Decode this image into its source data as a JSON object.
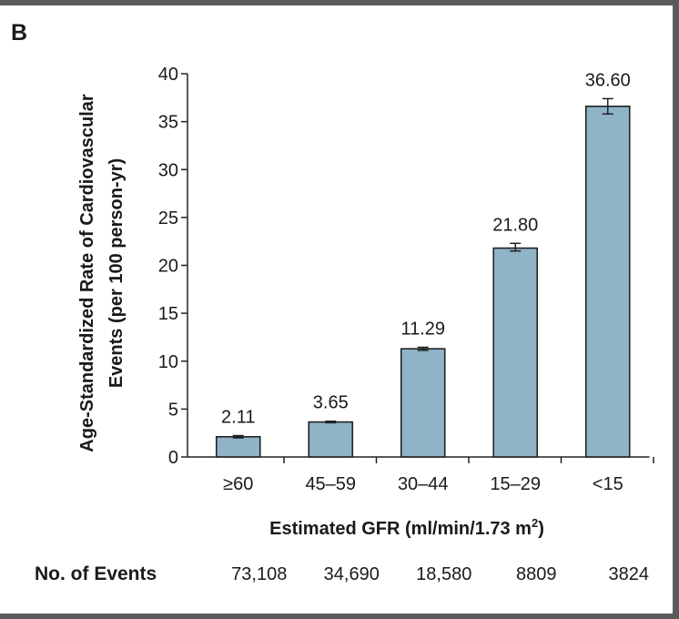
{
  "panel_label": "B",
  "chart_data": {
    "type": "bar",
    "categories": [
      "≥60",
      "45–59",
      "30–44",
      "15–29",
      "<15"
    ],
    "values": [
      2.11,
      3.65,
      11.29,
      21.8,
      36.6
    ],
    "value_labels": [
      "2.11",
      "3.65",
      "11.29",
      "21.80",
      "36.60"
    ],
    "error_bars": [
      [
        1.99,
        2.23
      ],
      [
        3.57,
        3.73
      ],
      [
        11.13,
        11.45
      ],
      [
        21.5,
        22.3
      ],
      [
        35.8,
        37.4
      ]
    ],
    "ylabel_line1": "Age-Standardized Rate of Cardiovascular",
    "ylabel_line2": "Events (per 100 person-yr)",
    "xlabel_main": "Estimated GFR (ml/min/1.73 m",
    "xlabel_sup": "2",
    "xlabel_end": ")",
    "ylim": [
      0,
      40
    ],
    "yticks": [
      0,
      5,
      10,
      15,
      20,
      25,
      30,
      35,
      40
    ],
    "grid": false,
    "bar_color": "#8fb4c8"
  },
  "events": {
    "label": "No. of Events",
    "values": [
      "73,108",
      "34,690",
      "18,580",
      "8809",
      "3824"
    ]
  }
}
